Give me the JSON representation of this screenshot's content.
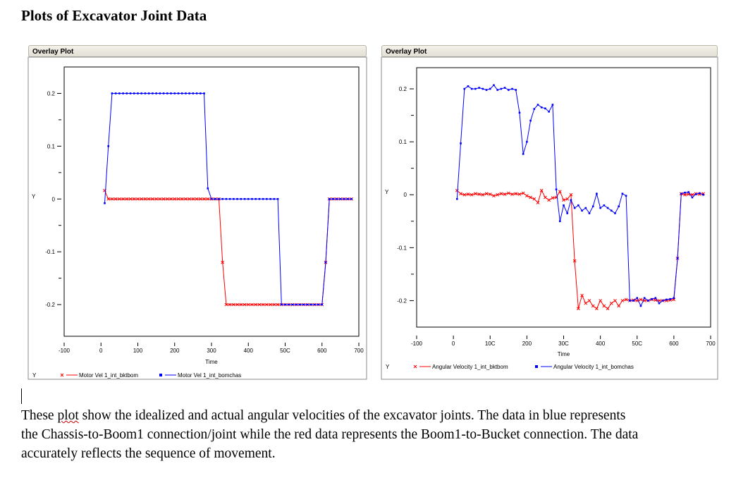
{
  "document": {
    "title": "Plots of Excavator Joint Data",
    "description_lead": "These ",
    "description_flagged": "plot",
    "description_rest": " show the idealized and actual angular velocities of the excavator joints.  The data in blue represents the Chassis-to-Boom1 connection/joint while the red data represents the Boom1-to-Bucket connection.  The data accurately reflects the sequence of movement."
  },
  "chart_data": [
    {
      "panel_title": "Overlay Plot",
      "type": "scatter",
      "xlabel": "Time",
      "ylabel": "Y",
      "legend_prefix": "Y",
      "legend_position": "bottom",
      "xlim": [
        -100,
        700
      ],
      "ylim": [
        -0.26,
        0.25
      ],
      "x_ticks": [
        "-100",
        "0",
        "100",
        "200",
        "300",
        "400",
        "50C",
        "600",
        "700"
      ],
      "x_tick_values": [
        -100,
        0,
        100,
        200,
        300,
        400,
        500,
        600,
        700
      ],
      "y_ticks": [
        "0.2",
        "0.1",
        "0",
        "-0.1",
        "-0.2"
      ],
      "y_tick_values": [
        0.2,
        0.1,
        0,
        -0.1,
        -0.2
      ],
      "series": [
        {
          "name": "Motor Vel 1_int_bktbom",
          "color": "#ff0000",
          "marker": "x",
          "x": [
            10,
            20,
            30,
            40,
            50,
            60,
            70,
            80,
            90,
            100,
            110,
            120,
            130,
            140,
            150,
            160,
            170,
            180,
            190,
            200,
            210,
            220,
            230,
            240,
            250,
            260,
            270,
            280,
            290,
            300,
            310,
            320,
            330,
            340,
            350,
            360,
            370,
            380,
            390,
            400,
            410,
            420,
            430,
            440,
            450,
            460,
            470,
            480,
            490,
            500,
            510,
            520,
            530,
            540,
            550,
            560,
            570,
            580,
            590,
            600,
            610,
            620,
            630,
            640,
            650,
            660,
            670,
            680
          ],
          "y": [
            0.016,
            0,
            0,
            0,
            0,
            0,
            0,
            0,
            0,
            0,
            0,
            0,
            0,
            0,
            0,
            0,
            0,
            0,
            0,
            0,
            0,
            0,
            0,
            0,
            0,
            0,
            0,
            0,
            0,
            0,
            0,
            0,
            -0.12,
            -0.2,
            -0.2,
            -0.2,
            -0.2,
            -0.2,
            -0.2,
            -0.2,
            -0.2,
            -0.2,
            -0.2,
            -0.2,
            -0.2,
            -0.2,
            -0.2,
            -0.2,
            -0.2,
            -0.2,
            -0.2,
            -0.2,
            -0.2,
            -0.2,
            -0.2,
            -0.2,
            -0.2,
            -0.2,
            -0.2,
            -0.2,
            -0.12,
            0,
            0,
            0,
            0,
            0,
            0,
            0
          ]
        },
        {
          "name": "Motor Vel 1_int_bomchas",
          "color": "#0000ff",
          "marker": "square",
          "x": [
            10,
            20,
            30,
            40,
            50,
            60,
            70,
            80,
            90,
            100,
            110,
            120,
            130,
            140,
            150,
            160,
            170,
            180,
            190,
            200,
            210,
            220,
            230,
            240,
            250,
            260,
            270,
            280,
            290,
            300,
            310,
            320,
            330,
            340,
            350,
            360,
            370,
            380,
            390,
            400,
            410,
            420,
            430,
            440,
            450,
            460,
            470,
            480,
            490,
            500,
            510,
            520,
            530,
            540,
            550,
            560,
            570,
            580,
            590,
            600,
            610,
            620,
            630,
            640,
            650,
            660,
            670,
            680
          ],
          "y": [
            -0.008,
            0.1,
            0.2,
            0.2,
            0.2,
            0.2,
            0.2,
            0.2,
            0.2,
            0.2,
            0.2,
            0.2,
            0.2,
            0.2,
            0.2,
            0.2,
            0.2,
            0.2,
            0.2,
            0.2,
            0.2,
            0.2,
            0.2,
            0.2,
            0.2,
            0.2,
            0.2,
            0.2,
            0.02,
            0,
            0,
            0,
            0,
            0,
            0,
            0,
            0,
            0,
            0,
            0,
            0,
            0,
            0,
            0,
            0,
            0,
            0,
            0,
            -0.2,
            -0.2,
            -0.2,
            -0.2,
            -0.2,
            -0.2,
            -0.2,
            -0.2,
            -0.2,
            -0.2,
            -0.2,
            -0.2,
            -0.12,
            0,
            0,
            0,
            0,
            0,
            0,
            0
          ]
        }
      ]
    },
    {
      "panel_title": "Overlay Plot",
      "type": "scatter",
      "xlabel": "Time",
      "ylabel": "Y",
      "legend_prefix": "Y",
      "legend_position": "bottom",
      "xlim": [
        -100,
        700
      ],
      "ylim": [
        -0.25,
        0.24
      ],
      "x_ticks": [
        "-100",
        "0",
        "10C",
        "200",
        "30C",
        "400",
        "50C",
        "600",
        "700"
      ],
      "x_tick_values": [
        -100,
        0,
        100,
        200,
        300,
        400,
        500,
        600,
        700
      ],
      "y_ticks": [
        "0.2",
        "0.1",
        "0",
        "-0.1",
        "-0.2"
      ],
      "y_tick_values": [
        0.2,
        0.1,
        0,
        -0.1,
        -0.2
      ],
      "series": [
        {
          "name": "Angular Velocity 1_int_bktbom",
          "color": "#ff0000",
          "marker": "x",
          "x": [
            10,
            20,
            30,
            40,
            50,
            60,
            70,
            80,
            90,
            100,
            110,
            120,
            130,
            140,
            150,
            160,
            170,
            180,
            190,
            200,
            210,
            220,
            230,
            240,
            250,
            260,
            270,
            280,
            290,
            300,
            310,
            320,
            330,
            340,
            350,
            360,
            370,
            380,
            390,
            400,
            410,
            420,
            430,
            440,
            450,
            460,
            470,
            480,
            490,
            500,
            510,
            520,
            530,
            540,
            550,
            560,
            570,
            580,
            590,
            600,
            610,
            620,
            630,
            640,
            650,
            660,
            670,
            680
          ],
          "y": [
            0.008,
            0.002,
            0,
            0.001,
            0,
            0.002,
            0.001,
            0,
            0.002,
            0.001,
            -0.002,
            0,
            0.002,
            0.001,
            0.003,
            0.001,
            0.002,
            0.001,
            0.003,
            -0.002,
            -0.005,
            -0.008,
            -0.015,
            0.008,
            -0.005,
            -0.01,
            -0.006,
            -0.005,
            0.006,
            -0.01,
            -0.008,
            0,
            -0.125,
            -0.215,
            -0.19,
            -0.205,
            -0.2,
            -0.21,
            -0.215,
            -0.2,
            -0.21,
            -0.215,
            -0.205,
            -0.2,
            -0.21,
            -0.2,
            -0.198,
            -0.2,
            -0.199,
            -0.2,
            -0.198,
            -0.2,
            -0.2,
            -0.198,
            -0.199,
            -0.2,
            -0.2,
            -0.2,
            -0.199,
            -0.198,
            -0.12,
            0.002,
            0,
            0.001,
            0,
            0.002,
            0.001,
            0.002
          ]
        },
        {
          "name": "Angular Velocity 1_int_bomchas",
          "color": "#0000ff",
          "marker": "square",
          "x": [
            10,
            20,
            30,
            40,
            50,
            60,
            70,
            80,
            90,
            100,
            110,
            120,
            130,
            140,
            150,
            160,
            170,
            180,
            190,
            200,
            210,
            220,
            230,
            240,
            250,
            260,
            270,
            280,
            290,
            300,
            310,
            320,
            330,
            340,
            350,
            360,
            370,
            380,
            390,
            400,
            410,
            420,
            430,
            440,
            450,
            460,
            470,
            480,
            490,
            500,
            510,
            520,
            530,
            540,
            550,
            560,
            570,
            580,
            590,
            600,
            610,
            620,
            630,
            640,
            650,
            660,
            670,
            680
          ],
          "y": [
            -0.008,
            0.097,
            0.2,
            0.205,
            0.2,
            0.2,
            0.202,
            0.2,
            0.198,
            0.2,
            0.207,
            0.198,
            0.2,
            0.202,
            0.198,
            0.2,
            0.198,
            0.155,
            0.077,
            0.1,
            0.14,
            0.162,
            0.17,
            0.165,
            0.163,
            0.157,
            0.17,
            0.01,
            -0.05,
            -0.02,
            -0.035,
            -0.01,
            -0.025,
            -0.02,
            -0.03,
            -0.025,
            -0.035,
            -0.022,
            0.002,
            -0.025,
            -0.02,
            -0.025,
            -0.03,
            -0.035,
            -0.022,
            0.002,
            -0.002,
            -0.2,
            -0.2,
            -0.195,
            -0.21,
            -0.195,
            -0.2,
            -0.197,
            -0.195,
            -0.205,
            -0.2,
            -0.198,
            -0.197,
            -0.195,
            -0.12,
            0.002,
            0.004,
            0.005,
            -0.005,
            0.001,
            0.003,
            0
          ]
        }
      ]
    }
  ]
}
